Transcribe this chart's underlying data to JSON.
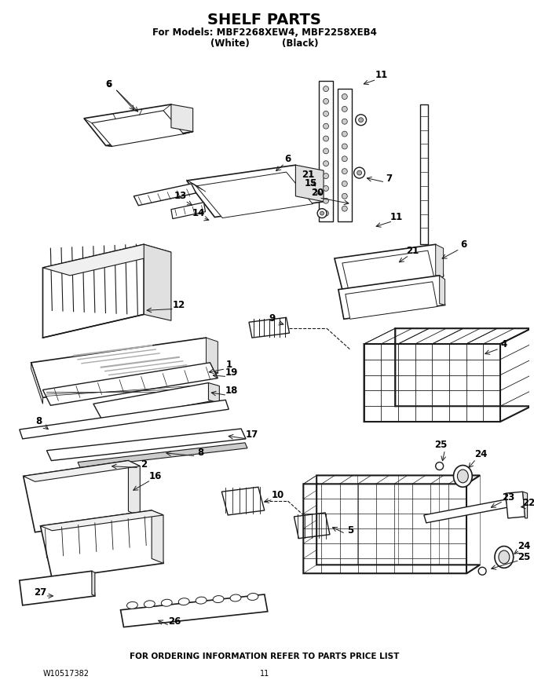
{
  "title": "SHELF PARTS",
  "subtitle1": "For Models: MBF2268XEW4, MBF2258XEB4",
  "subtitle2": "(White)          (Black)",
  "footer_text": "FOR ORDERING INFORMATION REFER TO PARTS PRICE LIST",
  "doc_number": "W10517382",
  "page_number": "11",
  "bg_color": "#ffffff",
  "line_color": "#1a1a1a",
  "figsize": [
    6.8,
    8.8
  ],
  "dpi": 100
}
